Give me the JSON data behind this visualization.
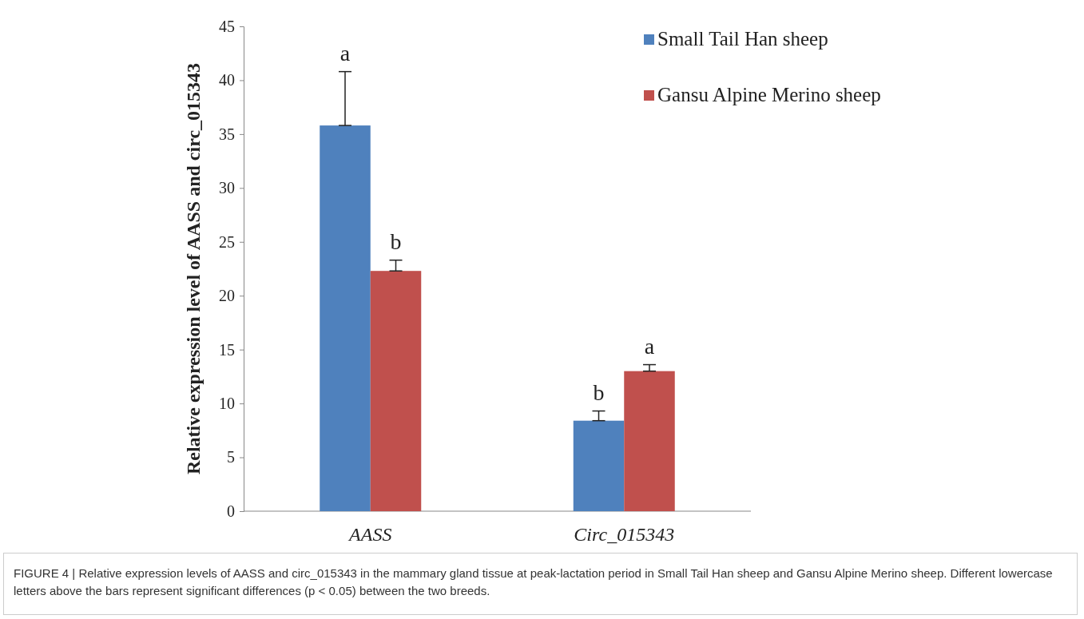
{
  "chart_data": {
    "type": "bar",
    "ylabel": "Relative expression level of AASS and circ_015343",
    "categories": [
      "AASS",
      "Circ_015343"
    ],
    "series": [
      {
        "name": "Small Tail Han sheep",
        "color": "#4f81bd",
        "values": [
          35.8,
          8.4
        ],
        "errors": [
          [
            35.8,
            40.8
          ],
          [
            8.4,
            9.3
          ]
        ]
      },
      {
        "name": "Gansu Alpine Merino sheep",
        "color": "#c0504d",
        "values": [
          22.3,
          13.0
        ],
        "errors": [
          [
            22.3,
            23.3
          ],
          [
            13.0,
            13.6
          ]
        ]
      }
    ],
    "ylim": [
      0,
      45
    ],
    "yticks": [
      0,
      5,
      10,
      15,
      20,
      25,
      30,
      35,
      40,
      45
    ],
    "grid": false,
    "legend": "top right",
    "annotations": [
      "a",
      "b",
      "b",
      "a",
      "FIGURE 4 | Relative expression levels of AASS and circ_015343 in the mammary gland tissue at peak-lactation period in Small Tail Han sheep and Gansu Alpine Merino sheep. Different lowercase letters above the bars represent significant differences (p < 0.05) between the two breeds."
    ]
  }
}
